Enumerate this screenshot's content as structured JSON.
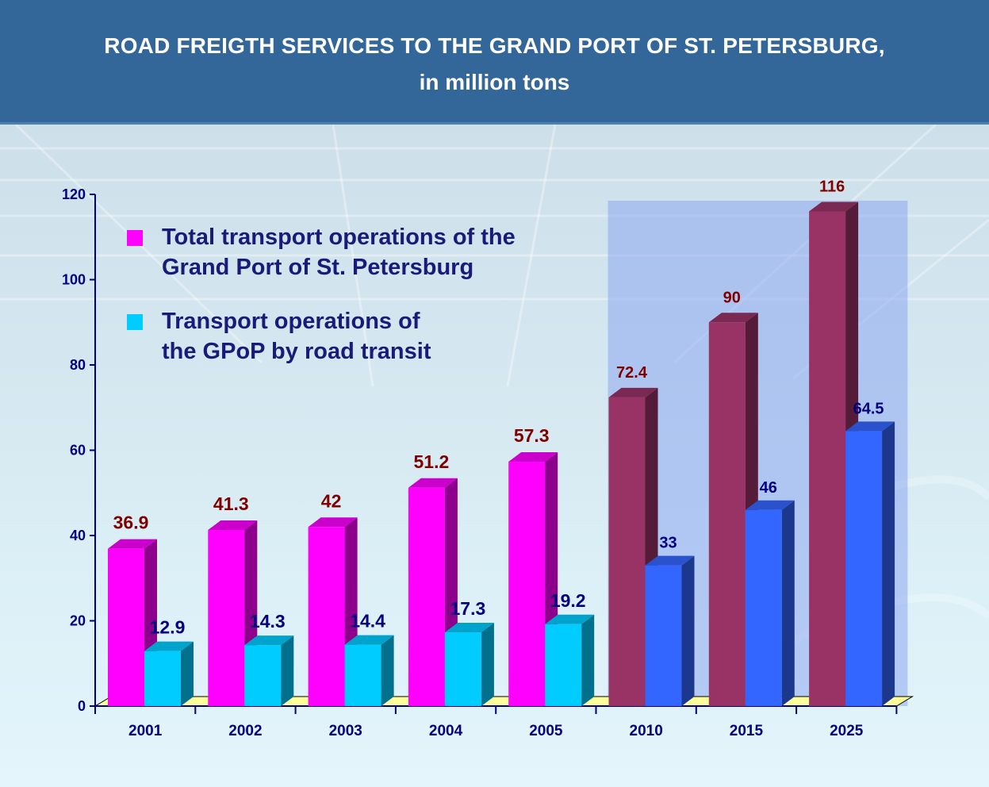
{
  "header": {
    "title": "ROAD FREIGTH SERVICES TO THE GRAND PORT OF ST. PETERSBURG,",
    "subtitle": "in million tons"
  },
  "legend": {
    "items": [
      {
        "line1": "Total transport operations of the",
        "line2": "Grand Port of St. Petersburg",
        "color": "#ff00ff"
      },
      {
        "line1": "Transport operations of",
        "line2": "the GPoP by road transit",
        "color": "#00ccff"
      }
    ]
  },
  "colors": {
    "total_actual": "#ff00ff",
    "transit_actual": "#00ccff",
    "total_forecast": "#993366",
    "transit_forecast": "#3366ff",
    "label_total": "#800000",
    "label_transit": "#000080",
    "axis": "#000080",
    "forecast_highlight": "#8ea8f0",
    "floor": "#ffff99"
  },
  "chart_data": {
    "type": "bar",
    "categories": [
      "2001",
      "2002",
      "2003",
      "2004",
      "2005",
      "2010",
      "2015",
      "2025"
    ],
    "forecast_categories": [
      "2010",
      "2015",
      "2025"
    ],
    "series": [
      {
        "name": "Total transport operations of the Grand Port of St. Petersburg",
        "values": [
          36.9,
          41.3,
          42,
          51.2,
          57.3,
          72.4,
          90,
          116
        ],
        "labels": [
          "36.9",
          "41.3",
          "42",
          "51.2",
          "57.3",
          "72.4",
          "90",
          "116"
        ]
      },
      {
        "name": "Transport operations of the GPoP by road transit",
        "values": [
          12.9,
          14.3,
          14.4,
          17.3,
          19.2,
          33,
          46,
          64.5
        ],
        "labels": [
          "12.9",
          "14.3",
          "14.4",
          "17.3",
          "19.2",
          "33",
          "46",
          "64.5"
        ]
      }
    ],
    "yticks": [
      "0",
      "20",
      "40",
      "60",
      "80",
      "100",
      "120"
    ],
    "ylim": [
      0,
      120
    ],
    "title": "ROAD FREIGTH SERVICES TO THE GRAND PORT OF ST. PETERSBURG,",
    "subtitle": "in million tons",
    "xlabel": "",
    "ylabel": "",
    "grid": false,
    "legend_position": "top-left"
  }
}
